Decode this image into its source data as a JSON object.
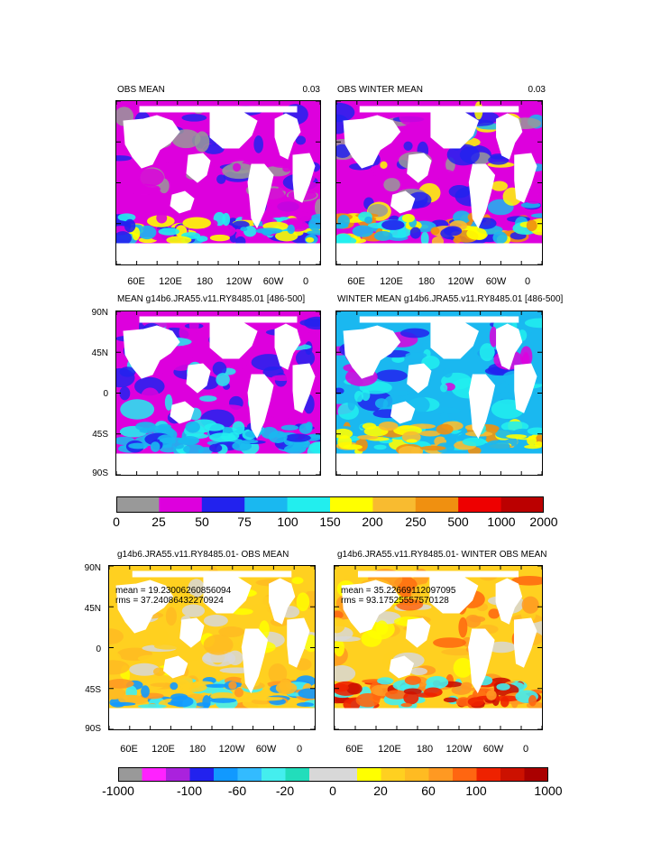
{
  "panels": [
    {
      "id": "p1",
      "title": "OBS MEAN",
      "corner": "0.03",
      "scheme": "obs"
    },
    {
      "id": "p2",
      "title": "OBS WINTER MEAN",
      "corner": "0.03",
      "scheme": "obs_winter"
    },
    {
      "id": "p3",
      "title": "MEAN g14b6.JRA55.v11.RY8485.01 [486-500]",
      "corner": "",
      "scheme": "model"
    },
    {
      "id": "p4",
      "title": "WINTER MEAN g14b6.JRA55.v11.RY8485.01 [486-500]",
      "corner": "",
      "scheme": "model_winter"
    },
    {
      "id": "p5",
      "title": "g14b6.JRA55.v11.RY8485.01- OBS MEAN",
      "corner": "",
      "scheme": "diff",
      "mean_text": "mean = 19.23006260856094",
      "rms_text": "rms = 37.24086432270924"
    },
    {
      "id": "p6",
      "title": "g14b6.JRA55.v11.RY8485.01- WINTER OBS MEAN",
      "corner": "",
      "scheme": "diff_winter",
      "mean_text": "mean = 35.22669112097095",
      "rms_text": "rms = 93.17525557570128"
    }
  ],
  "axes": {
    "lat_labels": [
      "90N",
      "45N",
      "0",
      "45S",
      "90S"
    ],
    "lon_labels": [
      "60E",
      "120E",
      "180",
      "120W",
      "60W",
      "0"
    ]
  },
  "colorbar_top": {
    "colors": [
      "#999999",
      "#dd00dd",
      "#2222ee",
      "#1ab8f0",
      "#22eeee",
      "#ffff00",
      "#f8bb30",
      "#f09010",
      "#ee0000",
      "#bb0000"
    ],
    "tick_labels": [
      "0",
      "25",
      "50",
      "75",
      "100",
      "150",
      "200",
      "250",
      "500",
      "1000",
      "2000"
    ]
  },
  "colorbar_bottom": {
    "colors": [
      "#999999",
      "#ff22ff",
      "#aa22dd",
      "#2222ee",
      "#1199ff",
      "#33bbff",
      "#44eeee",
      "#22ddbb",
      "#d8d8d8",
      "#d8d8d8",
      "#ffff00",
      "#ffd020",
      "#ffbb22",
      "#ff9922",
      "#ff6611",
      "#ee2200",
      "#cc1100",
      "#aa0000"
    ],
    "tick_labels": [
      "-1000",
      "-100",
      "-60",
      "-20",
      "0",
      "20",
      "60",
      "100",
      "1000"
    ]
  }
}
